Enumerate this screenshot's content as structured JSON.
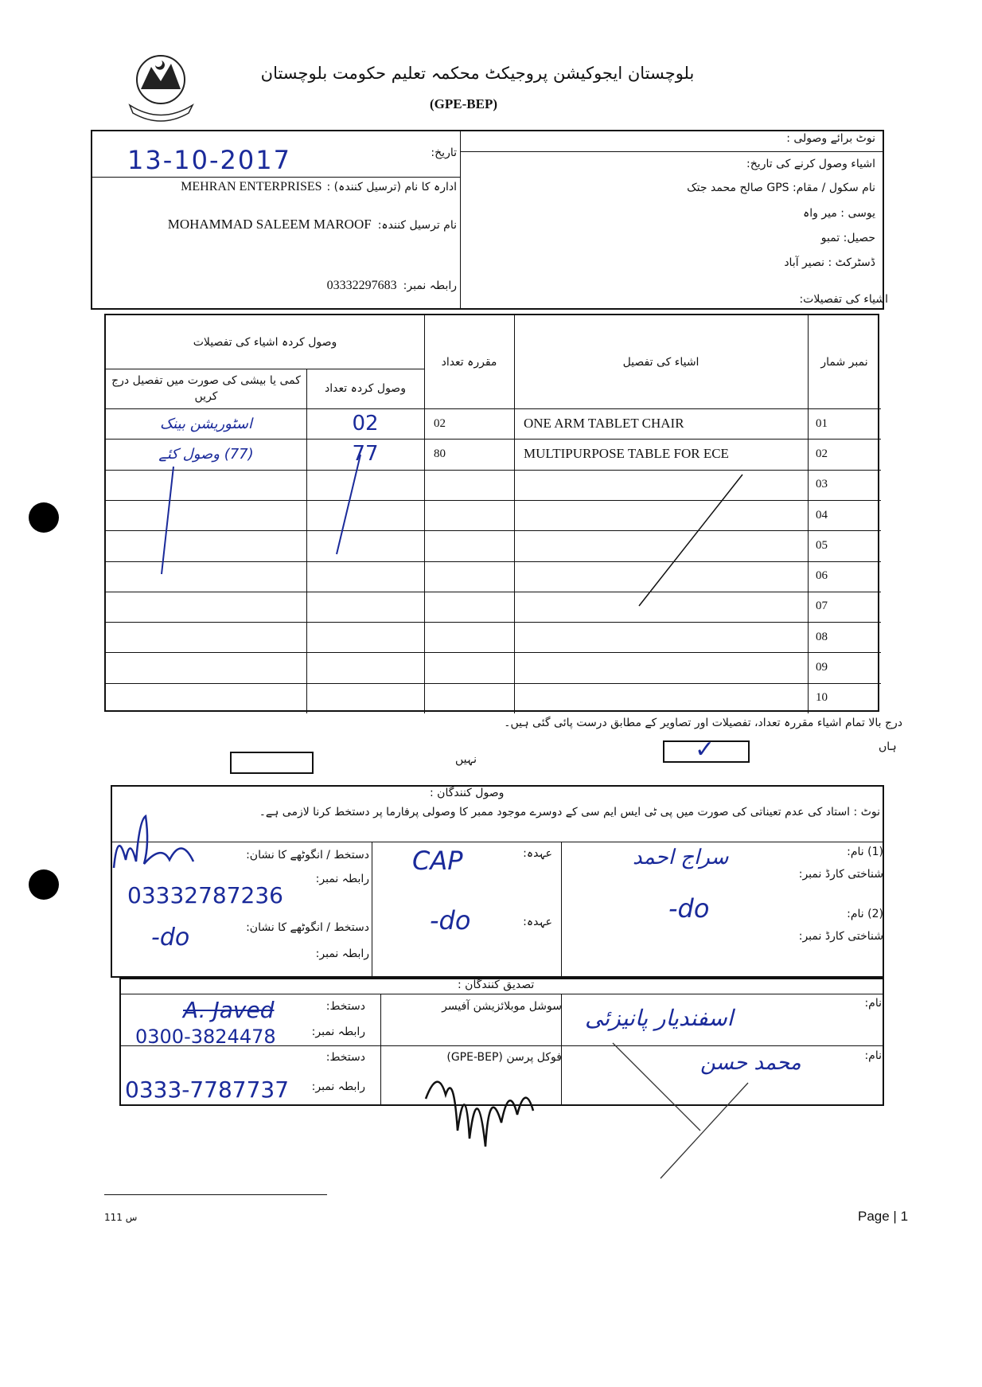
{
  "header": {
    "title": "بلوچستان ایجوکیشن پروجیکٹ محکمہ تعلیم حکومت بلوچستان",
    "subtitle": "(GPE-BEP)",
    "logo": "balochistan-govt-emblem"
  },
  "receipt_info": {
    "note_label": "نوٹ برائے وصولی :",
    "receive_date_label": "اشیاء وصول کرنے کی تاریخ:",
    "school_label": "نام سکول / مقام:",
    "school_value": "GPS  صالح محمد جتک",
    "uc_label": "یوسی :",
    "uc_value": "میر واہ",
    "tehsil_label": "حصیل:",
    "tehsil_value": "تمبو",
    "district_label": "ڈسٹرکٹ :",
    "district_value": "نصیر آباد",
    "date_label": "تاریخ:",
    "date_value": "13-10-2017",
    "company_label": "ادارہ کا نام (ترسیل کنندہ) :",
    "company_value": "MEHRAN ENTERPRISES",
    "sender_label": "نام ترسیل کنندہ:",
    "sender_value": "MOHAMMAD SALEEM MAROOF",
    "contact_label": "رابطہ نمبر:",
    "contact_value": "03332297683"
  },
  "items_heading": "اشیاء کی تفصیلات:",
  "items_table": {
    "headers": {
      "serial": "نمبر شمار",
      "description": "اشیاء کی تفصیل",
      "required_qty": "مقررہ تعداد",
      "received_group": "وصول کردہ اشیاء کی تفصیلات",
      "received_qty": "وصول کردہ تعداد",
      "remarks": "کمی یا بیشی کی صورت میں تفصیل درج کریں"
    },
    "rows": [
      {
        "serial": "01",
        "description": "ONE ARM TABLET CHAIR",
        "required": "02",
        "received": "02",
        "remarks": "اسٹوریشن بینک"
      },
      {
        "serial": "02",
        "description": "MULTIPURPOSE TABLE FOR ECE",
        "required": "80",
        "received": "77",
        "remarks": "(77) وصول کئے"
      },
      {
        "serial": "03",
        "description": "",
        "required": "",
        "received": "",
        "remarks": ""
      },
      {
        "serial": "04",
        "description": "",
        "required": "",
        "received": "",
        "remarks": ""
      },
      {
        "serial": "05",
        "description": "",
        "required": "",
        "received": "",
        "remarks": ""
      },
      {
        "serial": "06",
        "description": "",
        "required": "",
        "received": "",
        "remarks": ""
      },
      {
        "serial": "07",
        "description": "",
        "required": "",
        "received": "",
        "remarks": ""
      },
      {
        "serial": "08",
        "description": "",
        "required": "",
        "received": "",
        "remarks": ""
      },
      {
        "serial": "09",
        "description": "",
        "required": "",
        "received": "",
        "remarks": ""
      },
      {
        "serial": "10",
        "description": "",
        "required": "",
        "received": "",
        "remarks": ""
      }
    ]
  },
  "statement": "درج بالا تمام اشیاء مقررہ تعداد، تفصیلات اور تصاویر کے مطابق درست پائی گئی ہیں۔",
  "confirm": {
    "yes_label": "ہاں",
    "no_label": "نہیں",
    "yes_checked": true,
    "no_checked": false,
    "check_mark": "✓"
  },
  "receivers": {
    "title": "وصول کنندگان :",
    "note": "نوٹ :  استاد کی عدم تعیناتی کی صورت میں پی ٹی ایس ایم سی کے دوسرے موجود ممبر کا وصولی پرفارما پر دستخط کرنا لازمی ہے۔",
    "name1_label": "(1)  نام:",
    "name1_value": "سراج احمد",
    "cnic_label": "شناختی کارڈ نمبر:",
    "designation_label": "عہدہ:",
    "designation1_value": "CAP",
    "signature_label": "دستخط / انگوٹھے کا نشان:",
    "contact_label": "رابطہ نمبر:",
    "contact1_value": "03332787236",
    "name2_label": "(2)  نام:",
    "name2_value": "-do",
    "designation2_value": "-do",
    "signature2_value": "-do"
  },
  "verifiers": {
    "title": "تصدیق کنندگان :",
    "name_label": "نام:",
    "name1_value": "اسفندیار پانیزئی",
    "role1": "سوشل موبلائزیشن آفیسر",
    "signature_label": "دستخط:",
    "signature1_value": "A. Javed",
    "contact_label": "رابطہ نمبر:",
    "contact1_value": "0300-3824478",
    "name2_value": "محمد حسن",
    "role2": "فوکل پرسن (GPE-BEP)",
    "contact2_value": "0333-7787737"
  },
  "footer": {
    "footnote": "س 111",
    "page": "Page | 1"
  },
  "colors": {
    "ink": "#111111",
    "handwriting": "#1a2a9a",
    "paper": "#ffffff"
  }
}
